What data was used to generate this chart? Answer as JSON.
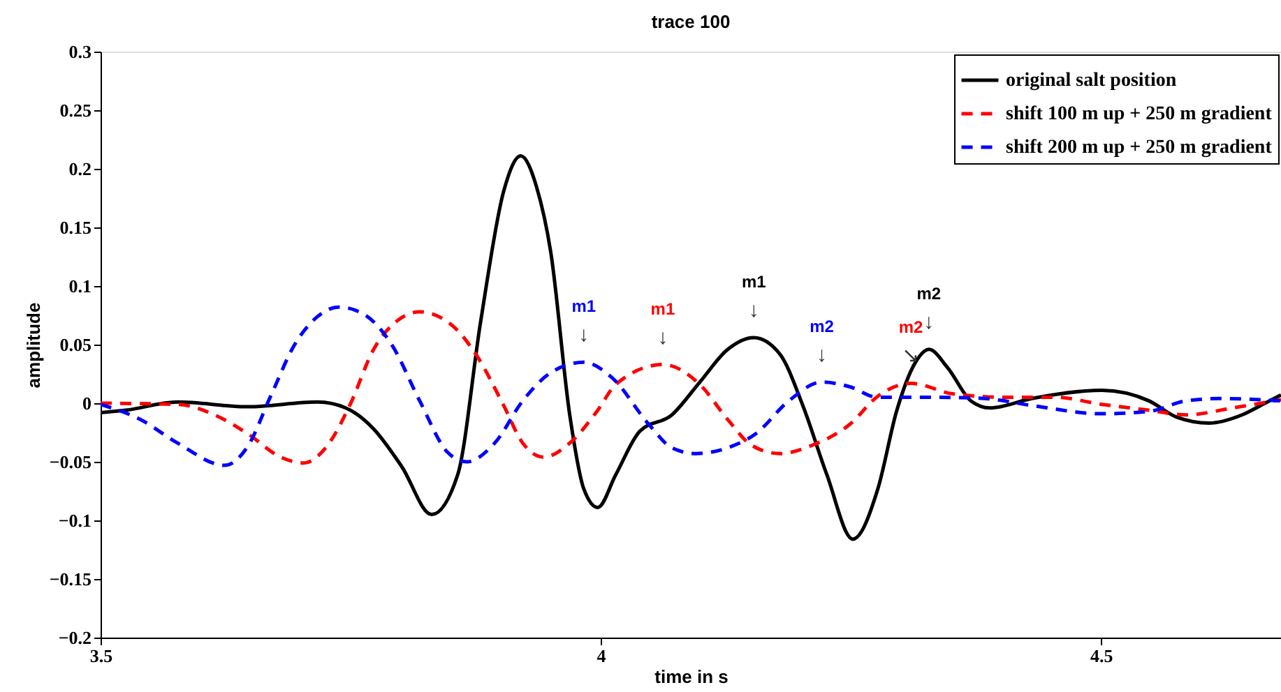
{
  "chart_data": {
    "type": "line",
    "title": "trace 100",
    "xlabel": "time in s",
    "ylabel": "amplitude",
    "xlim": [
      3.5,
      4.68
    ],
    "xticks": [
      3.5,
      4,
      4.5
    ],
    "ylim": [
      -0.2,
      0.3
    ],
    "yticks": [
      -0.2,
      -0.15,
      -0.1,
      -0.05,
      0,
      0.05,
      0.1,
      0.15,
      0.2,
      0.25,
      0.3
    ],
    "grid": false,
    "legend": "top right",
    "series": [
      {
        "name": "original salt position",
        "color": "#000000",
        "line_style": "solid",
        "x": [
          3.5,
          3.525,
          3.577,
          3.647,
          3.717,
          3.745,
          3.773,
          3.801,
          3.831,
          3.857,
          3.88,
          3.903,
          3.92,
          3.936,
          3.95,
          3.969,
          3.983,
          3.997,
          4.015,
          4.039,
          4.071,
          4.099,
          4.127,
          4.153,
          4.179,
          4.202,
          4.226,
          4.252,
          4.277,
          4.296,
          4.314,
          4.328,
          4.347,
          4.37,
          4.389,
          4.431,
          4.501,
          4.548,
          4.576,
          4.608,
          4.641,
          4.664,
          4.68
        ],
        "values": [
          -0.008,
          -0.006,
          0.001,
          -0.003,
          0.001,
          -0.004,
          -0.022,
          -0.054,
          -0.095,
          -0.061,
          0.07,
          0.181,
          0.211,
          0.184,
          0.129,
          -0.01,
          -0.073,
          -0.089,
          -0.061,
          -0.024,
          -0.01,
          0.018,
          0.046,
          0.056,
          0.042,
          -0.002,
          -0.061,
          -0.116,
          -0.073,
          -0.006,
          0.034,
          0.046,
          0.03,
          0.002,
          -0.004,
          0.004,
          0.011,
          0.002,
          -0.012,
          -0.017,
          -0.01,
          0.0,
          0.007
        ]
      },
      {
        "name": "shift 100 m up + 250 m gradient",
        "color": "#ff0000",
        "line_style": "dashed",
        "x": [
          3.5,
          3.577,
          3.614,
          3.647,
          3.68,
          3.703,
          3.726,
          3.749,
          3.773,
          3.796,
          3.819,
          3.852,
          3.875,
          3.903,
          3.922,
          3.943,
          3.969,
          3.997,
          4.015,
          4.062,
          4.099,
          4.127,
          4.151,
          4.179,
          4.211,
          4.249,
          4.277,
          4.31,
          4.352,
          4.408,
          4.455,
          4.501,
          4.548,
          4.585,
          4.632,
          4.68
        ],
        "values": [
          0.0,
          -0.001,
          -0.01,
          -0.026,
          -0.046,
          -0.051,
          -0.037,
          -0.002,
          0.046,
          0.07,
          0.078,
          0.066,
          0.042,
          -0.002,
          -0.034,
          -0.046,
          -0.034,
          -0.006,
          0.016,
          0.033,
          0.016,
          -0.014,
          -0.036,
          -0.043,
          -0.036,
          -0.018,
          0.006,
          0.017,
          0.008,
          0.005,
          0.005,
          -0.001,
          -0.006,
          -0.01,
          -0.004,
          0.003
        ]
      },
      {
        "name": "shift 200 m up + 250 m gradient",
        "color": "#0000ff",
        "line_style": "dashed",
        "x": [
          3.5,
          3.54,
          3.577,
          3.624,
          3.647,
          3.67,
          3.694,
          3.717,
          3.738,
          3.763,
          3.791,
          3.819,
          3.847,
          3.866,
          3.894,
          3.922,
          3.95,
          3.983,
          4.011,
          4.048,
          4.071,
          4.095,
          4.127,
          4.155,
          4.188,
          4.221,
          4.249,
          4.277,
          4.338,
          4.384,
          4.431,
          4.501,
          4.548,
          4.585,
          4.618,
          4.68
        ],
        "values": [
          -0.001,
          -0.014,
          -0.034,
          -0.053,
          -0.037,
          0.006,
          0.05,
          0.074,
          0.082,
          0.076,
          0.05,
          0.002,
          -0.042,
          -0.05,
          -0.034,
          0.002,
          0.026,
          0.035,
          0.022,
          -0.018,
          -0.038,
          -0.043,
          -0.038,
          -0.026,
          0.002,
          0.018,
          0.014,
          0.005,
          0.005,
          0.004,
          -0.002,
          -0.009,
          -0.007,
          0.002,
          0.004,
          0.002
        ]
      }
    ],
    "annotations": [
      "m1",
      {
        "text": "↓",
        "x": 3.983,
        "y": 0.035
      },
      "m1",
      {
        "text": "↓",
        "x": 4.062,
        "y": 0.033
      },
      "m1",
      {
        "text": "↓",
        "x": 4.153,
        "y": 0.056
      },
      "m2",
      {
        "text": "↓",
        "x": 4.221,
        "y": 0.018
      },
      "m2",
      {
        "text": "↘",
        "x": 4.31,
        "y": 0.017
      },
      "m2",
      {
        "text": "↓",
        "x": 4.328,
        "y": 0.046
      }
    ]
  }
}
